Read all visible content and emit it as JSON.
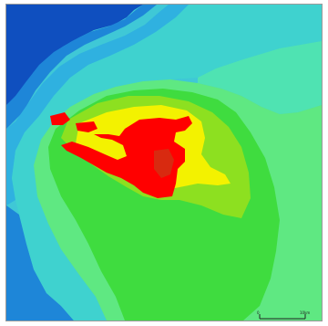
{
  "map": {
    "colors": {
      "deep_blue": "#0f4fbf",
      "mid_blue": "#1e86d8",
      "light_blue": "#2fb1e0",
      "cyan": "#3fd2cf",
      "aqua_green": "#4fe3b2",
      "light_green": "#5fe882",
      "green": "#3fdc3f",
      "lime": "#8de020",
      "yellow": "#f3f200",
      "red": "#ff0000",
      "dark_red_patch": "#d82a10"
    },
    "scale_bar": {
      "start_label": "0",
      "end_label": "10km"
    }
  }
}
